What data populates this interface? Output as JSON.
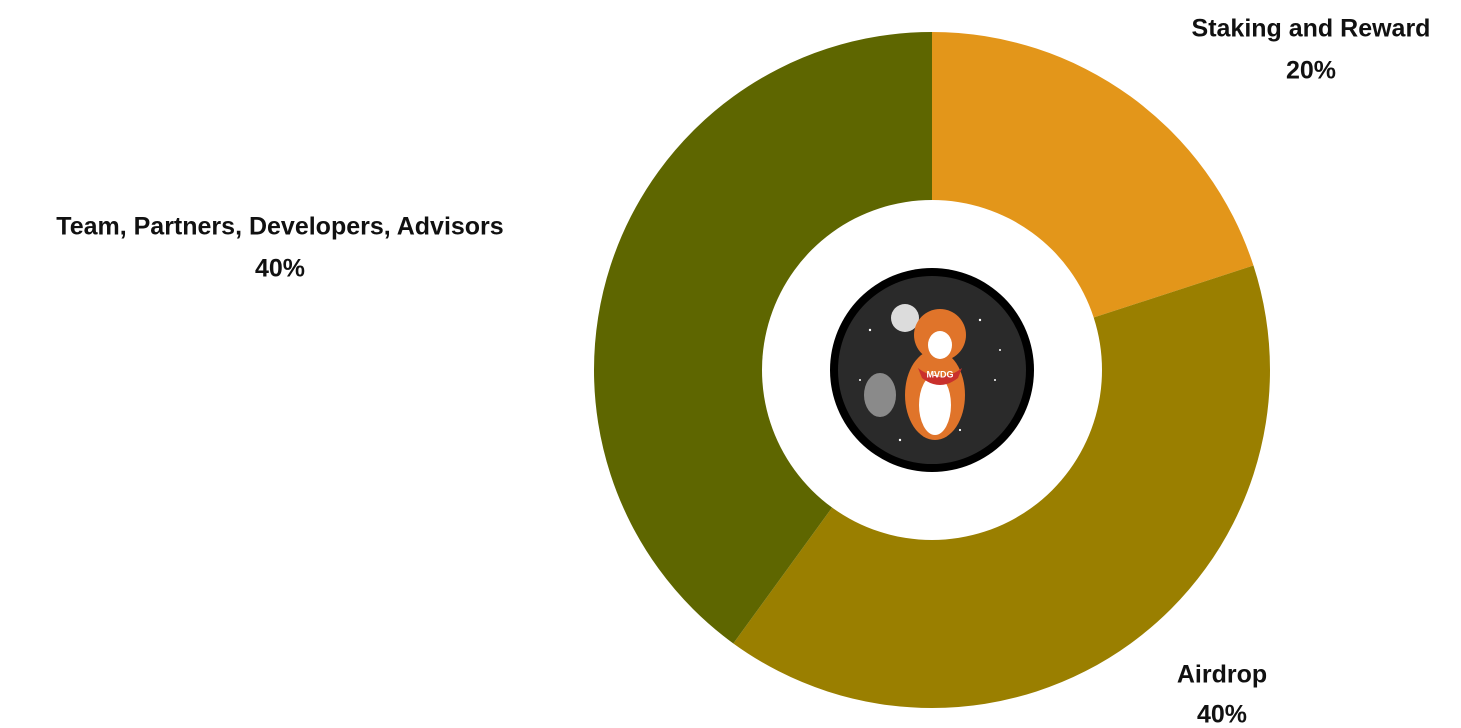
{
  "chart_data": {
    "type": "donut",
    "categories": [
      "Staking and Reward",
      "Airdrop",
      "Team, Partners, Developers, Advisors"
    ],
    "values": [
      20,
      40,
      40
    ],
    "value_labels": [
      "20%",
      "40%",
      "40%"
    ],
    "colors": [
      "#e3961a",
      "#9a7f00",
      "#5e6600"
    ],
    "center_label": "MVDG"
  }
}
